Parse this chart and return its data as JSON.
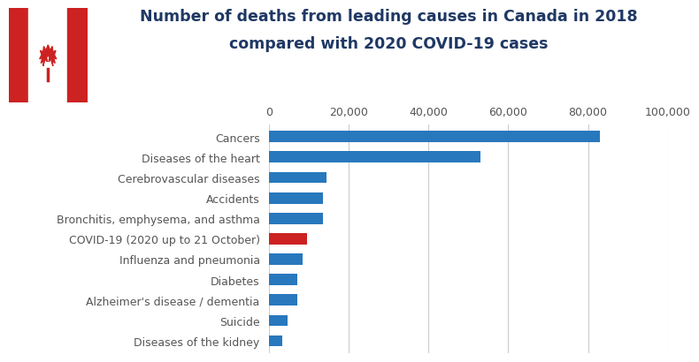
{
  "categories": [
    "Diseases of the kidney",
    "Suicide",
    "Alzheimer's disease / dementia",
    "Diabetes",
    "Influenza and pneumonia",
    "COVID-19 (2020 up to 21 October)",
    "Bronchitis, emphysema, and asthma",
    "Accidents",
    "Cerebrovascular diseases",
    "Diseases of the heart",
    "Cancers"
  ],
  "values": [
    3200,
    4600,
    7000,
    7000,
    8500,
    9500,
    13500,
    13500,
    14500,
    53000,
    83000
  ],
  "bar_colors": [
    "#2878BD",
    "#2878BD",
    "#2878BD",
    "#2878BD",
    "#2878BD",
    "#CC2222",
    "#2878BD",
    "#2878BD",
    "#2878BD",
    "#2878BD",
    "#2878BD"
  ],
  "title_line1": "Number of deaths from leading causes in Canada in 2018",
  "title_line2": "compared with 2020 COVID-19 cases",
  "xlim": [
    0,
    100000
  ],
  "xticks": [
    0,
    20000,
    40000,
    60000,
    80000,
    100000
  ],
  "xtick_labels": [
    "0",
    "20,000",
    "40,000",
    "60,000",
    "80,000",
    "100,000"
  ],
  "title_fontsize": 12.5,
  "label_fontsize": 9,
  "tick_fontsize": 9,
  "bar_height": 0.55,
  "bg_color": "#FFFFFF",
  "grid_color": "#CCCCCC",
  "text_color": "#555555",
  "title_color": "#1F3864",
  "flag_red": "#CC2222",
  "flag_white": "#FFFFFF"
}
